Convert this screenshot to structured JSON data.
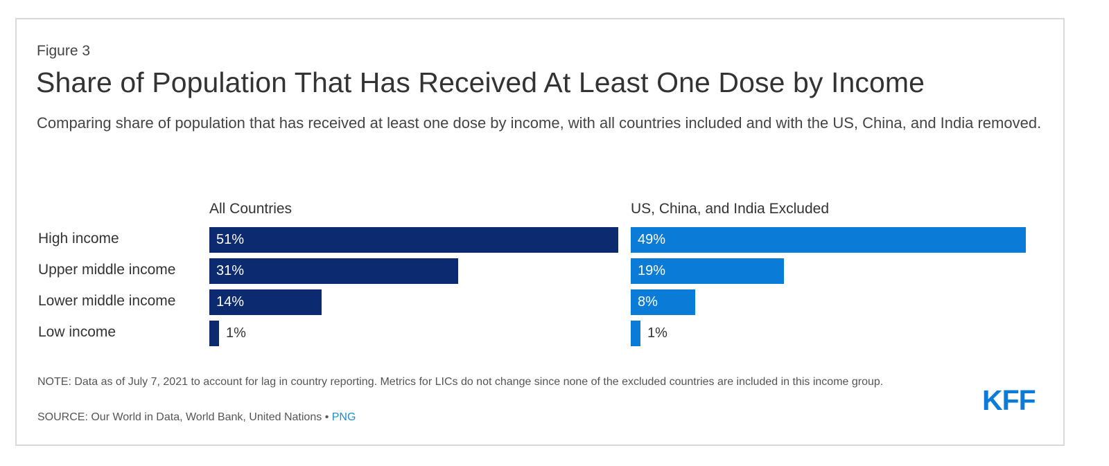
{
  "figure_label": "Figure 3",
  "title": "Share of Population That Has Received At Least One Dose by Income",
  "subtitle": "Comparing share of population that has received at least one dose by income, with all countries included and with the US, China, and India removed.",
  "note": "NOTE: Data as of July 7, 2021 to account for lag in country reporting. Metrics for LICs do not change since none of the excluded countries are included in this income group.",
  "source": "SOURCE: Our World in Data, World Bank, United Nations",
  "source_separator": "•",
  "png_link": "PNG",
  "logo": "KFF",
  "colors": {
    "all_countries": "#0b2a6f",
    "excluded": "#0a7bd7"
  },
  "chart_data": {
    "type": "bar",
    "orientation": "horizontal",
    "categories": [
      "High income",
      "Upper middle income",
      "Lower middle income",
      "Low income"
    ],
    "series": [
      {
        "name": "All Countries",
        "values": [
          51,
          31,
          14,
          1
        ],
        "labels": [
          "51%",
          "31%",
          "14%",
          "1%"
        ]
      },
      {
        "name": "US, China, and India Excluded",
        "values": [
          49,
          19,
          8,
          1
        ],
        "labels": [
          "49%",
          "19%",
          "8%",
          "1%"
        ]
      }
    ],
    "xlim": [
      0,
      51
    ],
    "grid": false
  }
}
